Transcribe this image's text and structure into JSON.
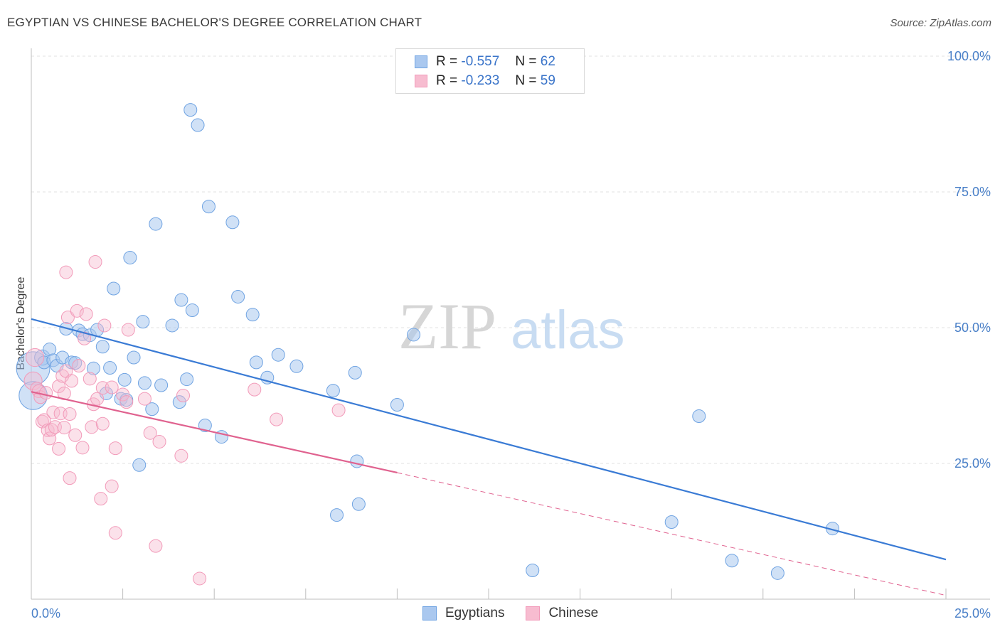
{
  "header": {
    "title": "EGYPTIAN VS CHINESE BACHELOR'S DEGREE CORRELATION CHART",
    "source": "Source: ZipAtlas.com"
  },
  "watermark": {
    "zip": "ZIP",
    "atlas": "atlas"
  },
  "stats": {
    "egyptians": {
      "r_label": "R =",
      "r": "-0.557",
      "n_label": "N =",
      "n": "62",
      "color": "#aac8ef"
    },
    "chinese": {
      "r_label": "R =",
      "r": "-0.233",
      "n_label": "N =",
      "n": "59",
      "color": "#f7bcd0"
    }
  },
  "legend": {
    "egyptians": "Egyptians",
    "chinese": "Chinese"
  },
  "chart_data": {
    "type": "scatter",
    "title": "EGYPTIAN VS CHINESE BACHELOR'S DEGREE CORRELATION CHART",
    "xlabel": "",
    "ylabel": "Bachelor's Degree",
    "xlim": [
      0,
      25
    ],
    "ylim": [
      0,
      100
    ],
    "x_tick_labels": [
      {
        "value": 0,
        "label": "0.0%"
      },
      {
        "value": 25,
        "label": "25.0%"
      }
    ],
    "y_tick_labels": [
      {
        "value": 25,
        "label": "25.0%"
      },
      {
        "value": 50,
        "label": "50.0%"
      },
      {
        "value": 75,
        "label": "75.0%"
      },
      {
        "value": 100,
        "label": "100.0%"
      }
    ],
    "series": [
      {
        "name": "Egyptians",
        "color": "#6fa3e2",
        "trend": {
          "x0": 0,
          "y0": 51.6,
          "x1": 25,
          "y1": 7.3,
          "color": "#3a7bd5"
        },
        "points": [
          [
            0.05,
            42.5,
            26
          ],
          [
            0.05,
            37.5,
            22
          ],
          [
            0.3,
            44.5,
            12
          ],
          [
            0.35,
            43.6,
            10
          ],
          [
            0.5,
            46.0,
            10
          ],
          [
            0.6,
            44.0,
            10
          ],
          [
            0.7,
            43.0,
            10
          ],
          [
            0.85,
            44.5,
            10
          ],
          [
            0.95,
            49.8,
            10
          ],
          [
            1.1,
            43.6,
            10
          ],
          [
            1.2,
            43.5,
            10
          ],
          [
            1.3,
            49.5,
            10
          ],
          [
            1.4,
            48.8,
            10
          ],
          [
            1.6,
            48.6,
            10
          ],
          [
            1.7,
            42.5,
            10
          ],
          [
            1.8,
            49.6,
            10
          ],
          [
            1.95,
            46.5,
            10
          ],
          [
            2.05,
            37.9,
            10
          ],
          [
            2.15,
            42.6,
            10
          ],
          [
            2.25,
            57.2,
            10
          ],
          [
            2.45,
            36.9,
            10
          ],
          [
            2.55,
            40.4,
            10
          ],
          [
            2.6,
            36.7,
            10
          ],
          [
            2.7,
            62.9,
            10
          ],
          [
            2.8,
            44.5,
            10
          ],
          [
            2.95,
            24.7,
            10
          ],
          [
            3.05,
            51.1,
            10
          ],
          [
            3.1,
            39.8,
            10
          ],
          [
            3.3,
            35.0,
            10
          ],
          [
            3.4,
            69.1,
            10
          ],
          [
            3.55,
            39.4,
            10
          ],
          [
            3.85,
            50.4,
            10
          ],
          [
            4.05,
            36.3,
            10
          ],
          [
            4.1,
            55.1,
            10
          ],
          [
            4.25,
            40.5,
            10
          ],
          [
            4.35,
            90.1,
            10
          ],
          [
            4.4,
            53.2,
            10
          ],
          [
            4.55,
            87.3,
            10
          ],
          [
            4.75,
            32.0,
            10
          ],
          [
            4.85,
            72.3,
            10
          ],
          [
            5.2,
            29.9,
            10
          ],
          [
            5.5,
            69.4,
            10
          ],
          [
            5.65,
            55.7,
            10
          ],
          [
            6.05,
            52.4,
            10
          ],
          [
            6.15,
            43.6,
            10
          ],
          [
            6.45,
            40.8,
            10
          ],
          [
            6.75,
            45.0,
            10
          ],
          [
            7.25,
            42.9,
            10
          ],
          [
            8.25,
            38.4,
            10
          ],
          [
            8.35,
            15.5,
            10
          ],
          [
            8.85,
            41.7,
            10
          ],
          [
            8.9,
            25.4,
            10
          ],
          [
            8.95,
            17.5,
            10
          ],
          [
            10.0,
            35.8,
            10
          ],
          [
            10.45,
            48.7,
            10
          ],
          [
            13.7,
            5.3,
            10
          ],
          [
            17.5,
            14.2,
            10
          ],
          [
            18.25,
            33.7,
            10
          ],
          [
            19.15,
            7.1,
            10
          ],
          [
            20.4,
            4.8,
            10
          ],
          [
            21.9,
            13.0,
            10
          ]
        ]
      },
      {
        "name": "Chinese",
        "color": "#f29ab9",
        "trend": {
          "x0": 0,
          "y0": 38.2,
          "x1": 10.0,
          "y1": 23.3,
          "dash_x1": 25,
          "dash_y1": 0.7,
          "color": "#e0628f"
        },
        "points": [
          [
            0.05,
            40.2,
            14
          ],
          [
            0.1,
            44.5,
            14
          ],
          [
            0.15,
            38.8,
            10
          ],
          [
            0.2,
            38.3,
            10
          ],
          [
            0.25,
            37.2,
            10
          ],
          [
            0.3,
            32.7,
            10
          ],
          [
            0.35,
            33.0,
            10
          ],
          [
            0.4,
            38.0,
            10
          ],
          [
            0.45,
            31.1,
            10
          ],
          [
            0.5,
            29.6,
            10
          ],
          [
            0.55,
            31.2,
            10
          ],
          [
            0.6,
            34.4,
            10
          ],
          [
            0.65,
            31.7,
            10
          ],
          [
            0.75,
            27.7,
            10
          ],
          [
            0.75,
            39.2,
            10
          ],
          [
            0.8,
            34.2,
            10
          ],
          [
            0.85,
            41.1,
            10
          ],
          [
            0.9,
            37.9,
            10
          ],
          [
            0.9,
            31.6,
            10
          ],
          [
            0.95,
            60.2,
            10
          ],
          [
            0.95,
            42.0,
            10
          ],
          [
            1.0,
            51.9,
            10
          ],
          [
            1.05,
            34.1,
            10
          ],
          [
            1.05,
            22.3,
            10
          ],
          [
            1.1,
            40.2,
            10
          ],
          [
            1.2,
            30.2,
            10
          ],
          [
            1.25,
            53.1,
            10
          ],
          [
            1.3,
            43.0,
            10
          ],
          [
            1.4,
            27.9,
            10
          ],
          [
            1.45,
            48.0,
            10
          ],
          [
            1.5,
            52.5,
            10
          ],
          [
            1.6,
            40.6,
            10
          ],
          [
            1.65,
            31.7,
            10
          ],
          [
            1.7,
            35.9,
            10
          ],
          [
            1.75,
            62.1,
            10
          ],
          [
            1.8,
            36.9,
            10
          ],
          [
            1.9,
            18.5,
            10
          ],
          [
            1.95,
            38.9,
            10
          ],
          [
            1.95,
            32.3,
            10
          ],
          [
            2.0,
            50.4,
            10
          ],
          [
            2.2,
            20.8,
            10
          ],
          [
            2.2,
            39.0,
            10
          ],
          [
            2.3,
            27.8,
            10
          ],
          [
            2.3,
            12.2,
            10
          ],
          [
            2.5,
            37.7,
            10
          ],
          [
            2.6,
            36.3,
            10
          ],
          [
            2.65,
            49.6,
            10
          ],
          [
            3.1,
            36.9,
            10
          ],
          [
            3.25,
            30.6,
            10
          ],
          [
            3.4,
            9.8,
            10
          ],
          [
            3.5,
            29.0,
            10
          ],
          [
            4.1,
            26.4,
            10
          ],
          [
            4.15,
            37.5,
            10
          ],
          [
            4.6,
            3.8,
            10
          ],
          [
            6.1,
            38.6,
            10
          ],
          [
            6.7,
            33.1,
            10
          ],
          [
            8.4,
            34.8,
            10
          ]
        ]
      }
    ]
  }
}
